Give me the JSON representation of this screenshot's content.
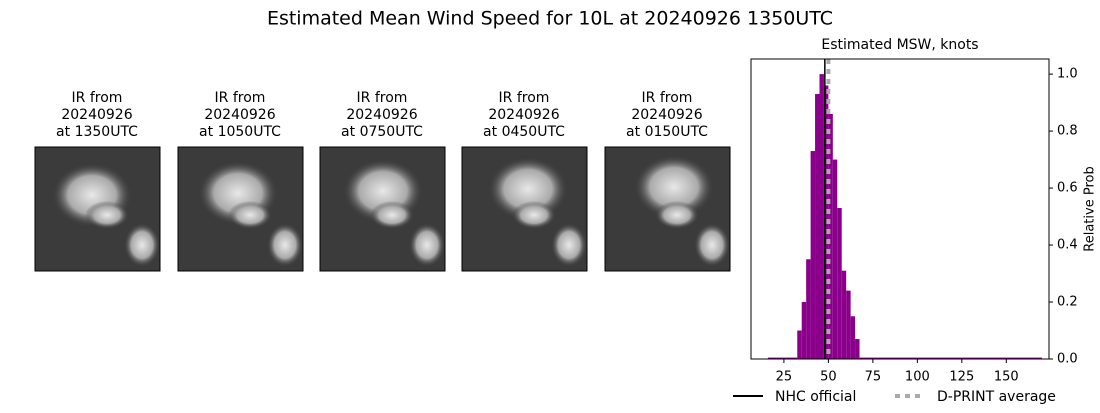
{
  "title": "Estimated Mean Wind Speed for 10L at 20240926 1350UTC",
  "panels": [
    {
      "title_lines": [
        "IR from",
        "20240926",
        "at 1350UTC"
      ]
    },
    {
      "title_lines": [
        "IR from",
        "20240926",
        "at 1050UTC"
      ]
    },
    {
      "title_lines": [
        "IR from",
        "20240926",
        "at 0750UTC"
      ]
    },
    {
      "title_lines": [
        "IR from",
        "20240926",
        "at 0450UTC"
      ]
    },
    {
      "title_lines": [
        "IR from",
        "20240926",
        "at 0150UTC"
      ]
    }
  ],
  "chart_data": {
    "type": "histogram",
    "title": "Estimated MSW, knots",
    "y_label": "Relative Prob",
    "color": "#8b008b",
    "bins": [
      16,
      32.5,
      35,
      37.5,
      40,
      42.5,
      45,
      47.5,
      50,
      52.5,
      55,
      57.5,
      60,
      62.5,
      65,
      67.5,
      170
    ],
    "values": [
      0.005,
      0.1,
      0.2,
      0.35,
      0.73,
      0.93,
      1.0,
      0.96,
      0.86,
      0.7,
      0.53,
      0.31,
      0.24,
      0.15,
      0.07,
      0.005
    ],
    "xlim": [
      6.5,
      174
    ],
    "xticks": [
      25,
      50,
      75,
      100,
      125,
      150
    ],
    "ylim": [
      0,
      1.053
    ],
    "yticks": [
      {
        "value": 0,
        "label": "0.0"
      },
      0.2,
      0.4,
      0.6,
      0.8,
      {
        "value": 1,
        "label": "1.0"
      }
    ],
    "reference_lines": [
      {
        "name": "NHC official",
        "value": 48,
        "color": "#000000",
        "dashed": false
      },
      {
        "name": "D-PRINT average",
        "value": 50,
        "color": "#aaaaaa",
        "dashed": true
      }
    ]
  }
}
